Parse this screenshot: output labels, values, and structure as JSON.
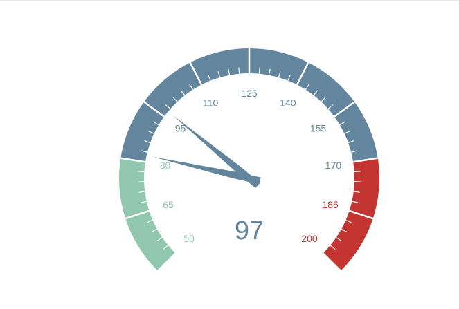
{
  "chart_data": {
    "type": "gauge",
    "min": 50,
    "max": 200,
    "value": 97,
    "value_label": "97",
    "tick_labels": [
      "50",
      "65",
      "80",
      "95",
      "110",
      "125",
      "140",
      "155",
      "170",
      "185",
      "200"
    ],
    "bands": [
      {
        "from": 50,
        "to": 80,
        "color": "#91c7ae"
      },
      {
        "from": 80,
        "to": 170,
        "color": "#63869e"
      },
      {
        "from": 170,
        "to": 200,
        "color": "#c23531"
      }
    ],
    "pointers": [
      {
        "value": 97,
        "color": "#63869e"
      },
      {
        "value": 82,
        "color": "#63869e"
      }
    ]
  },
  "colors": {
    "value_text": "#63869e",
    "background": "#ffffff"
  }
}
